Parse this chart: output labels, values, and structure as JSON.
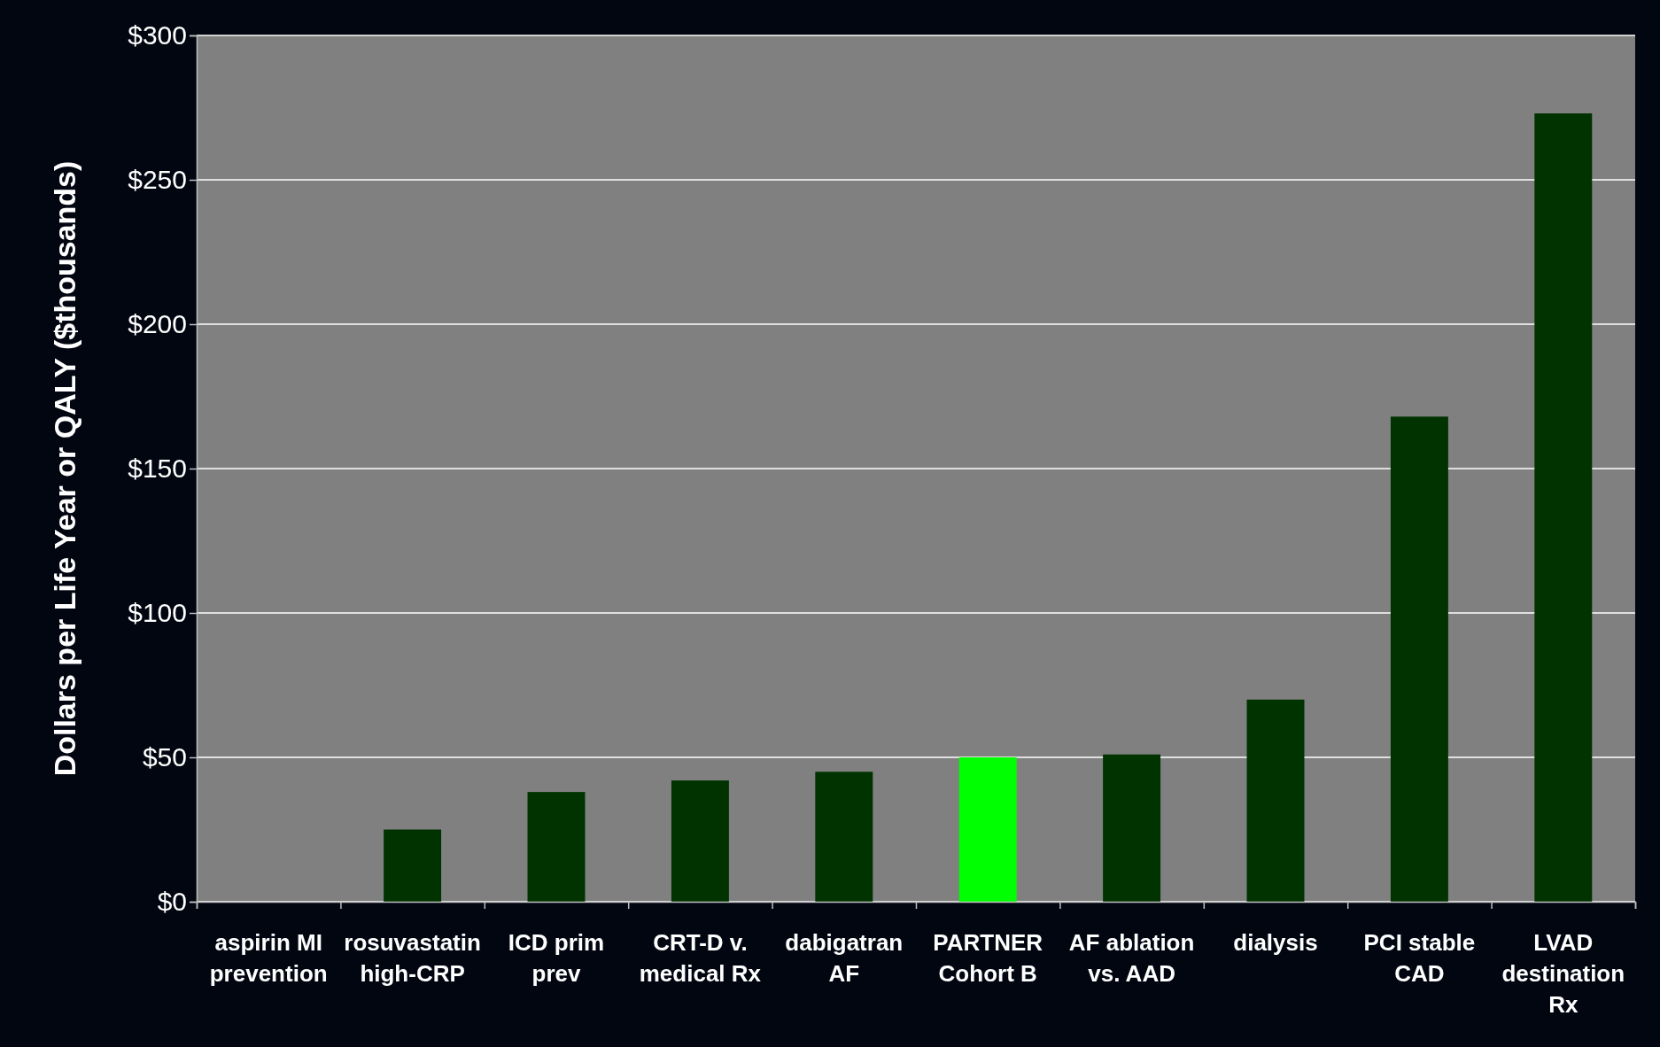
{
  "chart_data": {
    "type": "bar",
    "ylabel": "Dollars per Life Year or QALY ($thousands)",
    "categories": [
      "aspirin MI prevention",
      "rosuvastatin high-CRP",
      "ICD prim prev",
      "CRT-D v. medical Rx",
      "dabigatran AF",
      "PARTNER Cohort B",
      "AF ablation vs. AAD",
      "dialysis",
      "PCI stable CAD",
      "LVAD destination Rx"
    ],
    "values": [
      0,
      25,
      38,
      42,
      45,
      50,
      51,
      70,
      168,
      273
    ],
    "colors": [
      "#003300",
      "#003300",
      "#003300",
      "#003300",
      "#003300",
      "#00ff00",
      "#003300",
      "#003300",
      "#003300",
      "#003300"
    ],
    "ylim": [
      0,
      300
    ],
    "yticks": [
      {
        "value": 0,
        "label": "$0"
      },
      {
        "value": 50,
        "label": "$50"
      },
      {
        "value": 100,
        "label": "$100"
      },
      {
        "value": 150,
        "label": "$150"
      },
      {
        "value": 200,
        "label": "$200"
      },
      {
        "value": 250,
        "label": "$250"
      },
      {
        "value": 300,
        "label": "$300"
      }
    ],
    "grid": "y"
  }
}
